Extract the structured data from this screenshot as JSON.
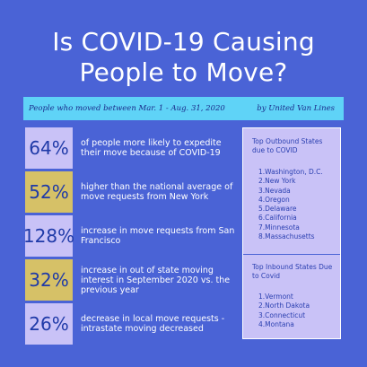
{
  "title": {
    "line1": "Is COVID-19 Causing",
    "line2": "People to Move?"
  },
  "banner": {
    "left": "People who moved between Mar. 1 - Aug. 31, 2020",
    "right": "by United Van Lines"
  },
  "stats": [
    {
      "value": "64%",
      "text": "of people more likely to expedite their move because of COVID-19",
      "color": "#c9c2f7"
    },
    {
      "value": "52%",
      "text": "higher than the national average of move requests from New York",
      "color": "#d6c167"
    },
    {
      "value": "128%",
      "text": "increase in move requests from San Francisco",
      "color": "#c9c2f7"
    },
    {
      "value": "32%",
      "text": "increase in out of state moving interest in September 2020 vs. the previous year",
      "color": "#d6c167"
    },
    {
      "value": "26%",
      "text": "decrease in local move requests - intrastate moving decreased",
      "color": "#c9c2f7"
    }
  ],
  "outbound": {
    "heading": "Top Outbound States due to COVID",
    "items": [
      "1.Washington, D.C.",
      "2.New York",
      "3.Nevada",
      "4.Oregon",
      "5.Delaware",
      "6.California",
      "7.Minnesota",
      "8.Massachusetts"
    ]
  },
  "inbound": {
    "heading": "Top Inbound States Due to Covid",
    "items": [
      "1.Vermont",
      "2.North Dakota",
      "3.Connecticut",
      "4.Montana"
    ]
  },
  "colors": {
    "background": "#4a63d6",
    "banner": "#5fd3f7",
    "lavender": "#c9c2f7",
    "tan": "#d6c167"
  }
}
